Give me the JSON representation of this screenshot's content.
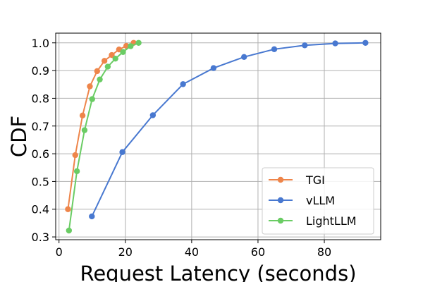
{
  "chart_data": {
    "type": "line",
    "title": "",
    "xlabel": "Request Latency (seconds)",
    "ylabel": "CDF",
    "xlim": [
      -1,
      97
    ],
    "ylim": [
      0.29,
      1.035
    ],
    "xticks": [
      0,
      20,
      40,
      60,
      80
    ],
    "yticks": [
      0.3,
      0.4,
      0.5,
      0.6,
      0.7,
      0.8,
      0.9,
      1.0
    ],
    "xtick_labels": [
      "0",
      "20",
      "40",
      "60",
      "80"
    ],
    "ytick_labels": [
      "0.3",
      "0.4",
      "0.5",
      "0.6",
      "0.7",
      "0.8",
      "0.9",
      "1.0"
    ],
    "grid": true,
    "legend_position": "lower-right",
    "series": [
      {
        "name": "TGI",
        "color": "#ee854a",
        "x": [
          2.7,
          4.9,
          7.1,
          9.3,
          11.5,
          13.7,
          15.9,
          18.1,
          20.3,
          22.5
        ],
        "y": [
          0.4,
          0.595,
          0.738,
          0.843,
          0.898,
          0.935,
          0.956,
          0.976,
          0.989,
          1.0
        ]
      },
      {
        "name": "vLLM",
        "color": "#4878d0",
        "x": [
          9.9,
          19.1,
          28.3,
          37.4,
          46.6,
          55.8,
          64.9,
          74.1,
          83.3,
          92.4
        ],
        "y": [
          0.374,
          0.606,
          0.739,
          0.851,
          0.909,
          0.949,
          0.977,
          0.991,
          0.998,
          1.0
        ]
      },
      {
        "name": "LightLLM",
        "color": "#6acc64",
        "x": [
          3.0,
          5.4,
          7.7,
          10.0,
          12.3,
          14.7,
          17.0,
          19.3,
          21.6,
          24.0
        ],
        "y": [
          0.323,
          0.537,
          0.685,
          0.797,
          0.868,
          0.914,
          0.943,
          0.967,
          0.988,
          1.0
        ]
      }
    ]
  }
}
